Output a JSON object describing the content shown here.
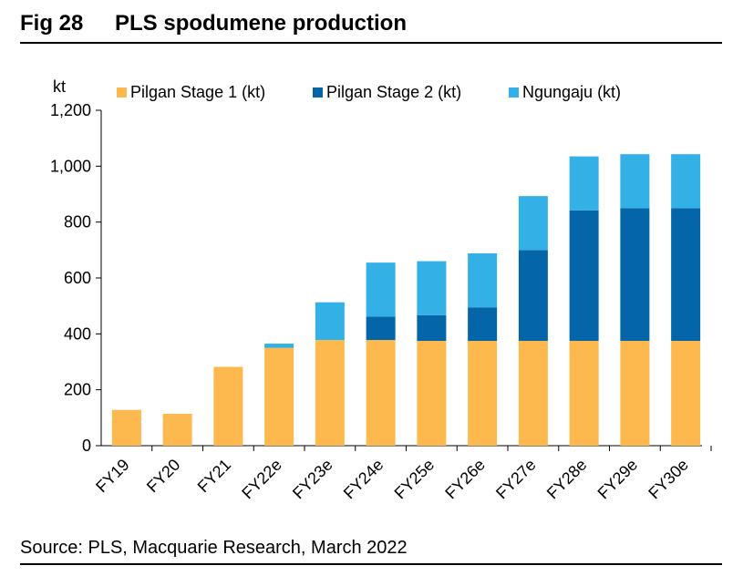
{
  "figure": {
    "number": "Fig 28",
    "title": "PLS spodumene production",
    "source": "Source: PLS, Macquarie Research, March 2022"
  },
  "chart_data": {
    "type": "bar",
    "stacked": true,
    "title": "PLS spodumene production",
    "ylabel": "kt",
    "xlabel": "",
    "ylim": [
      0,
      1200
    ],
    "yticks": [
      0,
      200,
      400,
      600,
      800,
      1000,
      1200
    ],
    "ytick_labels": [
      "0",
      "200",
      "400",
      "600",
      "800",
      "1,000",
      "1,200"
    ],
    "grid": false,
    "legend_position": "top",
    "categories": [
      "FY19",
      "FY20",
      "FY21",
      "FY22e",
      "FY23e",
      "FY24e",
      "FY25e",
      "FY26e",
      "FY27e",
      "FY28e",
      "FY29e",
      "FY30e"
    ],
    "series": [
      {
        "name": "Pilgan Stage 1 (kt)",
        "color": "#FDB94E",
        "values": [
          128,
          114,
          282,
          350,
          378,
          378,
          375,
          375,
          375,
          375,
          375,
          375
        ]
      },
      {
        "name": "Pilgan Stage 2 (kt)",
        "color": "#0466A8",
        "values": [
          0,
          0,
          0,
          0,
          0,
          84,
          92,
          120,
          325,
          467,
          475,
          475
        ]
      },
      {
        "name": "Ngungaju (kt)",
        "color": "#33B0E6",
        "values": [
          0,
          0,
          0,
          15,
          135,
          193,
          193,
          193,
          193,
          193,
          193,
          193
        ]
      }
    ]
  }
}
